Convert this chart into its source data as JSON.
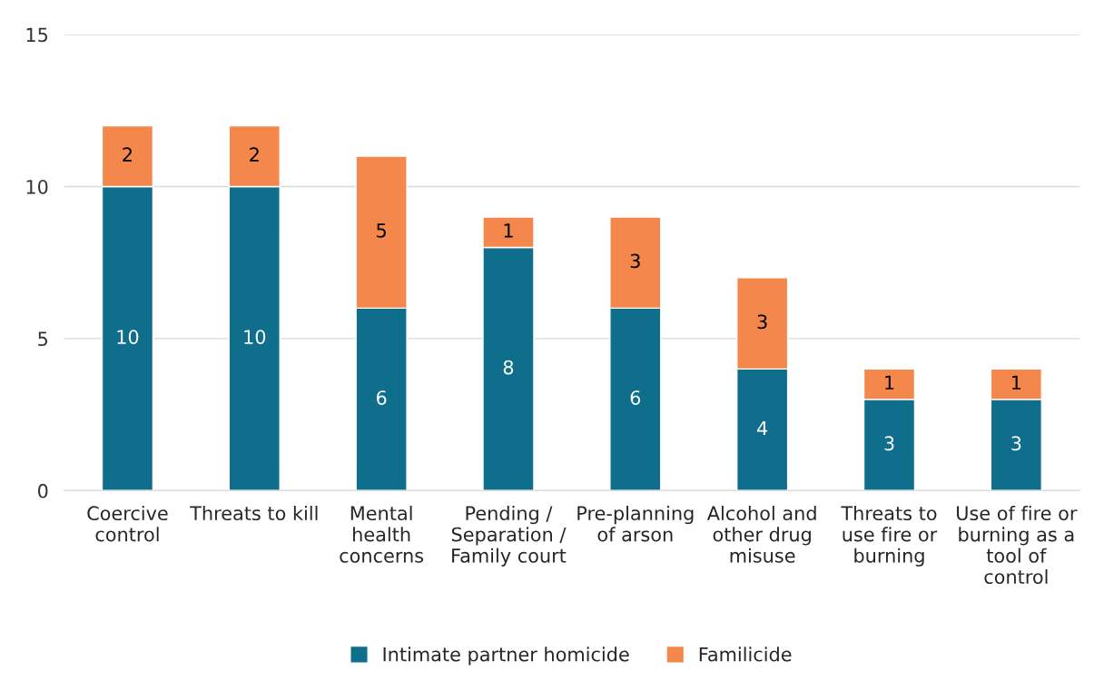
{
  "chart_data": {
    "type": "bar",
    "stacked": true,
    "categories": [
      "Coercive\ncontrol",
      "Threats to kill",
      "Mental\nhealth\nconcerns",
      "Pending /\nSeparation /\nFamily court",
      "Pre-planning\nof arson",
      "Alcohol and\nother drug\nmisuse",
      "Threats to\nuse fire or\nburning",
      "Use of fire or\nburning as a\ntool of\ncontrol"
    ],
    "series": [
      {
        "name": "Intimate partner homicide",
        "color": "#0f6e8c",
        "values": [
          10,
          10,
          6,
          8,
          6,
          4,
          3,
          3
        ]
      },
      {
        "name": "Familicide",
        "color": "#f4874b",
        "values": [
          2,
          2,
          5,
          1,
          3,
          3,
          1,
          1
        ]
      }
    ],
    "ylim": [
      0,
      15
    ],
    "yticks": [
      0,
      5,
      10,
      15
    ],
    "grid": "y",
    "legend": "bottom",
    "data_labels": true
  }
}
